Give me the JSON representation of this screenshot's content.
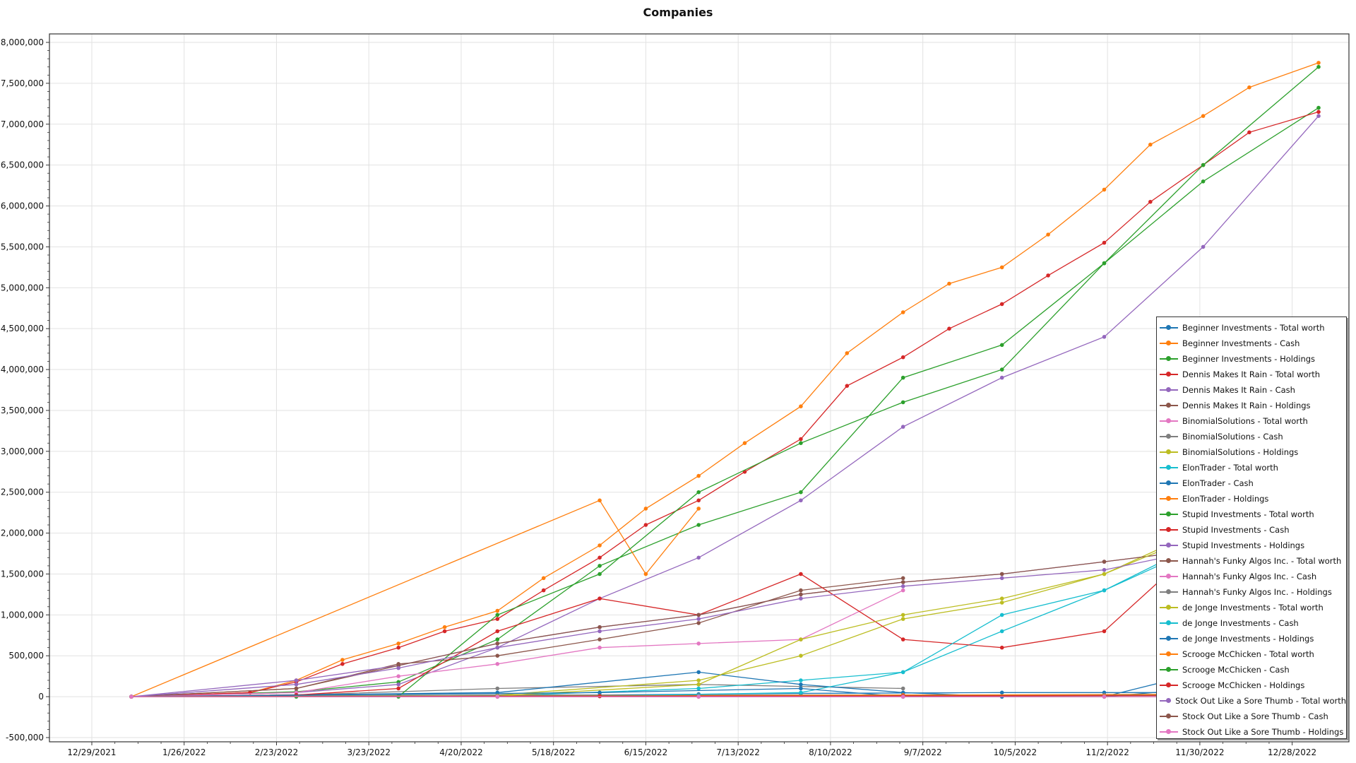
{
  "chart_data": {
    "type": "line",
    "title": "Companies",
    "xlabel": "",
    "ylabel": "",
    "x_start": "2021-12-29",
    "x_end": "2023-01-11",
    "ylim": [
      -500000,
      8000000
    ],
    "grid": true,
    "legend_position": "right",
    "y_ticks": [
      "-500,000",
      "0",
      "500,000",
      "1,000,000",
      "1,500,000",
      "2,000,000",
      "2,500,000",
      "3,000,000",
      "3,500,000",
      "4,000,000",
      "4,500,000",
      "5,000,000",
      "5,500,000",
      "6,000,000",
      "6,500,000",
      "7,000,000",
      "7,500,000",
      "8,000,000"
    ],
    "x_ticks": [
      "12/29/2021",
      "1/26/2022",
      "2/23/2022",
      "3/23/2022",
      "4/20/2022",
      "5/18/2022",
      "6/15/2022",
      "7/13/2022",
      "8/10/2022",
      "9/7/2022",
      "10/5/2022",
      "11/2/2022",
      "11/30/2022",
      "12/28/2022"
    ],
    "series": [
      {
        "name": "Beginner Investments - Total worth",
        "color": "#1f77b4",
        "x": [
          "2022-01-10",
          "2022-03-01",
          "2022-04-01",
          "2022-05-01",
          "2022-06-01",
          "2022-07-01",
          "2022-08-01",
          "2022-09-01",
          "2022-10-01",
          "2022-11-01",
          "2022-12-01",
          "2023-01-05"
        ],
        "y": [
          0,
          5000,
          10000,
          15000,
          20000,
          30000,
          40000,
          45000,
          50000,
          50000,
          50000,
          50000
        ]
      },
      {
        "name": "Beginner Investments - Cash",
        "color": "#ff7f0e",
        "x": [
          "2022-01-10",
          "2022-02-15",
          "2022-03-01",
          "2022-03-15",
          "2022-04-01",
          "2022-04-15",
          "2022-05-01",
          "2022-05-15",
          "2022-06-01",
          "2022-06-15",
          "2022-07-01",
          "2022-07-15",
          "2022-08-01",
          "2022-08-15",
          "2022-09-01",
          "2022-09-15",
          "2022-10-01",
          "2022-10-15",
          "2022-11-01",
          "2022-11-15",
          "2022-12-01",
          "2022-12-15",
          "2023-01-05"
        ],
        "y": [
          0,
          50000,
          200000,
          450000,
          650000,
          850000,
          1050000,
          1450000,
          1850000,
          2300000,
          2700000,
          3100000,
          3550000,
          4200000,
          4700000,
          5050000,
          5250000,
          5650000,
          6200000,
          6750000,
          7100000,
          7450000,
          7750000
        ]
      },
      {
        "name": "Beginner Investments - Holdings",
        "color": "#2ca02c",
        "x": [
          "2022-01-10",
          "2022-03-01",
          "2022-04-01",
          "2022-05-01",
          "2022-06-01",
          "2022-07-01",
          "2022-08-01",
          "2022-09-01",
          "2022-10-01",
          "2022-11-01",
          "2022-12-01",
          "2023-01-05"
        ],
        "y": [
          0,
          60000,
          180000,
          700000,
          1600000,
          2100000,
          2500000,
          3900000,
          4300000,
          5300000,
          6300000,
          7200000
        ]
      },
      {
        "name": "Dennis Makes It Rain - Total worth",
        "color": "#d62728",
        "x": [
          "2022-01-10",
          "2022-02-15",
          "2022-03-01",
          "2022-03-15",
          "2022-04-01",
          "2022-04-15",
          "2022-05-01",
          "2022-05-15",
          "2022-06-01",
          "2022-06-15",
          "2022-07-01",
          "2022-07-15",
          "2022-08-01",
          "2022-08-15",
          "2022-09-01",
          "2022-09-15",
          "2022-10-01",
          "2022-10-15",
          "2022-11-01",
          "2022-11-15",
          "2022-12-01",
          "2022-12-15",
          "2023-01-05"
        ],
        "y": [
          0,
          50000,
          180000,
          400000,
          600000,
          800000,
          950000,
          1300000,
          1700000,
          2100000,
          2400000,
          2750000,
          3150000,
          3800000,
          4150000,
          4500000,
          4800000,
          5150000,
          5550000,
          6050000,
          6500000,
          6900000,
          7150000
        ]
      },
      {
        "name": "Dennis Makes It Rain - Cash",
        "color": "#9467bd",
        "x": [
          "2022-01-10",
          "2022-03-01",
          "2022-04-01",
          "2022-05-01",
          "2022-06-01",
          "2022-07-01",
          "2022-08-01",
          "2022-09-01",
          "2022-10-01",
          "2022-11-01",
          "2022-12-01",
          "2023-01-05"
        ],
        "y": [
          0,
          50000,
          150000,
          600000,
          1200000,
          1700000,
          2400000,
          3300000,
          3900000,
          4400000,
          5500000,
          7100000
        ]
      },
      {
        "name": "Dennis Makes It Rain - Holdings",
        "color": "#8c564b",
        "x": [
          "2022-01-10",
          "2022-03-01",
          "2022-04-01",
          "2022-05-01",
          "2022-06-01",
          "2022-07-01",
          "2022-08-01",
          "2022-09-01"
        ],
        "y": [
          0,
          100000,
          400000,
          500000,
          700000,
          900000,
          1300000,
          1450000
        ]
      },
      {
        "name": "BinomialSolutions - Total worth",
        "color": "#e377c2",
        "x": [
          "2022-01-10",
          "2022-03-01",
          "2022-04-01",
          "2022-05-01",
          "2022-06-01",
          "2022-07-01",
          "2022-08-01",
          "2022-09-01"
        ],
        "y": [
          0,
          50000,
          250000,
          400000,
          600000,
          650000,
          700000,
          1300000
        ]
      },
      {
        "name": "BinomialSolutions - Cash",
        "color": "#7f7f7f",
        "x": [
          "2022-01-10",
          "2022-03-01",
          "2022-05-01",
          "2022-07-01",
          "2022-09-01"
        ],
        "y": [
          0,
          20000,
          100000,
          150000,
          100000
        ]
      },
      {
        "name": "BinomialSolutions - Holdings",
        "color": "#bcbd22",
        "x": [
          "2022-01-10",
          "2022-05-01",
          "2022-07-01",
          "2022-08-01",
          "2022-09-01",
          "2022-10-01",
          "2022-11-01",
          "2022-12-01"
        ],
        "y": [
          0,
          20000,
          200000,
          500000,
          950000,
          1150000,
          1500000,
          2050000
        ]
      },
      {
        "name": "ElonTrader - Total worth",
        "color": "#17becf",
        "x": [
          "2022-01-10",
          "2022-05-01",
          "2022-07-01",
          "2022-08-01",
          "2022-09-01",
          "2022-10-01",
          "2022-11-01",
          "2022-12-01"
        ],
        "y": [
          0,
          10000,
          100000,
          200000,
          300000,
          800000,
          1300000,
          1900000
        ]
      },
      {
        "name": "ElonTrader - Cash",
        "color": "#1f77b4",
        "x": [
          "2022-01-10",
          "2022-05-01",
          "2022-07-01",
          "2022-08-01",
          "2022-09-01",
          "2022-10-01",
          "2022-11-01",
          "2022-12-01"
        ],
        "y": [
          0,
          50000,
          300000,
          150000,
          50000,
          0,
          0,
          300000
        ]
      },
      {
        "name": "ElonTrader - Holdings",
        "color": "#ff7f0e",
        "x": [
          "2022-01-10",
          "2022-06-01",
          "2022-06-15",
          "2022-07-01"
        ],
        "y": [
          0,
          2400000,
          1500000,
          2300000
        ]
      },
      {
        "name": "Stupid Investments - Total worth",
        "color": "#2ca02c",
        "x": [
          "2022-01-10",
          "2022-03-01",
          "2022-04-01",
          "2022-05-01",
          "2022-06-01",
          "2022-07-01",
          "2022-08-01",
          "2022-09-01",
          "2022-10-01",
          "2022-11-01",
          "2022-12-01",
          "2023-01-05"
        ],
        "y": [
          0,
          0,
          0,
          1000000,
          1500000,
          2500000,
          3100000,
          3600000,
          4000000,
          5300000,
          6500000,
          7700000
        ]
      },
      {
        "name": "Stupid Investments - Cash",
        "color": "#d62728",
        "x": [
          "2022-01-10",
          "2022-03-01",
          "2022-04-01",
          "2022-05-01",
          "2022-06-01",
          "2022-07-01",
          "2022-08-01",
          "2022-09-01",
          "2022-10-01",
          "2022-11-01",
          "2022-12-01"
        ],
        "y": [
          0,
          20000,
          100000,
          800000,
          1200000,
          1000000,
          1500000,
          700000,
          600000,
          800000,
          1900000
        ]
      },
      {
        "name": "Stupid Investments - Holdings",
        "color": "#9467bd",
        "x": [
          "2022-01-10",
          "2022-03-01",
          "2022-04-01",
          "2022-05-01",
          "2022-06-01",
          "2022-07-01",
          "2022-08-01",
          "2022-09-01",
          "2022-10-01",
          "2022-11-01",
          "2022-12-01",
          "2023-01-05"
        ],
        "y": [
          0,
          200000,
          380000,
          650000,
          850000,
          1000000,
          1250000,
          1400000,
          1500000,
          1650000,
          1800000,
          1800000
        ]
      },
      {
        "name": "Hannah's Funky Algos Inc. - Total worth",
        "color": "#8c564b",
        "x": [
          "2022-01-10",
          "2022-03-01",
          "2022-04-01",
          "2022-05-01",
          "2022-06-01",
          "2022-07-01",
          "2022-08-01",
          "2022-09-01",
          "2022-10-01",
          "2022-11-01",
          "2022-12-01"
        ],
        "y": [
          0,
          100000,
          380000,
          650000,
          850000,
          1000000,
          1250000,
          1400000,
          1500000,
          1650000,
          1800000
        ]
      },
      {
        "name": "Hannah's Funky Algos Inc. - Cash",
        "color": "#e377c2",
        "x": [
          "2022-01-10",
          "2022-05-01",
          "2022-07-01",
          "2022-09-01",
          "2022-11-01",
          "2023-01-05"
        ],
        "y": [
          0,
          0,
          0,
          0,
          0,
          0
        ]
      },
      {
        "name": "Hannah's Funky Algos Inc. - Holdings",
        "color": "#7f7f7f",
        "x": [
          "2022-01-10",
          "2022-05-01",
          "2022-07-01",
          "2022-09-01",
          "2022-11-01",
          "2023-01-05"
        ],
        "y": [
          0,
          20000,
          20000,
          20000,
          20000,
          20000
        ]
      },
      {
        "name": "de Jonge Investments - Total worth",
        "color": "#bcbd22",
        "x": [
          "2022-01-10",
          "2022-05-01",
          "2022-07-01",
          "2022-08-01",
          "2022-09-01",
          "2022-10-01",
          "2022-11-01",
          "2022-12-01"
        ],
        "y": [
          0,
          10000,
          150000,
          700000,
          1000000,
          1200000,
          1500000,
          2000000
        ]
      },
      {
        "name": "de Jonge Investments - Cash",
        "color": "#17becf",
        "x": [
          "2022-01-10",
          "2022-06-01",
          "2022-08-01",
          "2022-09-01",
          "2022-10-01",
          "2022-11-01",
          "2022-12-01"
        ],
        "y": [
          0,
          10000,
          50000,
          300000,
          1000000,
          1300000,
          1850000
        ]
      },
      {
        "name": "de Jonge Investments - Holdings",
        "color": "#1f77b4",
        "x": [
          "2022-01-10",
          "2022-06-01",
          "2022-08-01",
          "2022-09-01",
          "2022-10-01",
          "2022-11-01",
          "2022-12-01"
        ],
        "y": [
          0,
          50000,
          100000,
          0,
          0,
          0,
          100000
        ]
      },
      {
        "name": "Scrooge McChicken - Total worth",
        "color": "#ff7f0e",
        "x": [
          "2022-01-10",
          "2022-06-01",
          "2022-09-01",
          "2022-12-01",
          "2023-01-05"
        ],
        "y": [
          0,
          10000,
          20000,
          30000,
          40000
        ]
      },
      {
        "name": "Scrooge McChicken - Cash",
        "color": "#2ca02c",
        "x": [
          "2022-01-10",
          "2022-06-01",
          "2022-09-01",
          "2022-12-01",
          "2023-01-05"
        ],
        "y": [
          0,
          5000,
          10000,
          15000,
          20000
        ]
      },
      {
        "name": "Scrooge McChicken - Holdings",
        "color": "#d62728",
        "x": [
          "2022-01-10",
          "2022-06-01",
          "2022-09-01",
          "2022-12-01",
          "2023-01-05"
        ],
        "y": [
          0,
          5000,
          10000,
          15000,
          20000
        ]
      },
      {
        "name": "Stock Out Like a Sore Thumb - Total worth",
        "color": "#9467bd",
        "x": [
          "2022-01-10",
          "2022-03-01",
          "2022-04-01",
          "2022-05-01",
          "2022-06-01",
          "2022-07-01",
          "2022-08-01",
          "2022-09-01",
          "2022-10-01",
          "2022-11-01",
          "2022-12-01"
        ],
        "y": [
          0,
          150000,
          350000,
          600000,
          800000,
          950000,
          1200000,
          1350000,
          1450000,
          1550000,
          1800000
        ]
      },
      {
        "name": "Stock Out Like a Sore Thumb - Cash",
        "color": "#8c564b",
        "x": [
          "2022-01-10",
          "2022-05-01",
          "2022-07-01",
          "2022-09-01",
          "2022-11-01",
          "2023-01-05"
        ],
        "y": [
          0,
          0,
          0,
          0,
          0,
          0
        ]
      },
      {
        "name": "Stock Out Like a Sore Thumb - Holdings",
        "color": "#e377c2",
        "x": [
          "2022-01-10",
          "2022-05-01",
          "2022-07-01",
          "2022-09-01",
          "2022-11-01",
          "2023-01-05"
        ],
        "y": [
          0,
          0,
          0,
          0,
          0,
          0
        ]
      }
    ]
  }
}
